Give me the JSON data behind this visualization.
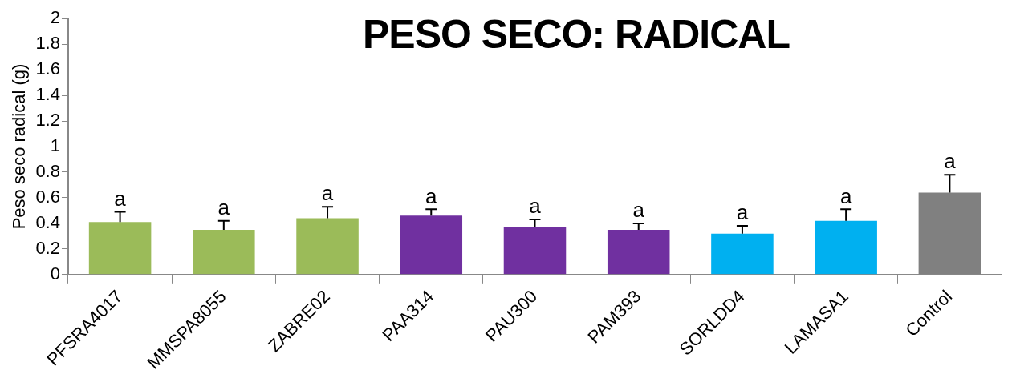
{
  "chart_data": {
    "type": "bar",
    "title": "PESO SECO: RADICAL",
    "ylabel": "Peso seco radical (g)",
    "categories": [
      "PFSRA4017",
      "MMSPA8055",
      "ZABRE02",
      "PAA314",
      "PAU300",
      "PAM393",
      "SORLDD4",
      "LAMASA1",
      "Control"
    ],
    "values": [
      0.41,
      0.35,
      0.44,
      0.46,
      0.37,
      0.35,
      0.32,
      0.42,
      0.64
    ],
    "colors": [
      "#9bbb59",
      "#9bbb59",
      "#9bbb59",
      "#7030a0",
      "#7030a0",
      "#7030a0",
      "#00b0f0",
      "#00b0f0",
      "#808080"
    ],
    "errors": [
      [
        0.41,
        0.49
      ],
      [
        0.35,
        0.42
      ],
      [
        0.44,
        0.53
      ],
      [
        0.46,
        0.51
      ],
      [
        0.37,
        0.43
      ],
      [
        0.35,
        0.4
      ],
      [
        0.32,
        0.38
      ],
      [
        0.42,
        0.51
      ],
      [
        0.64,
        0.78
      ]
    ],
    "value_labels": [
      "a",
      "a",
      "a",
      "a",
      "a",
      "a",
      "a",
      "a",
      "a"
    ],
    "ylim": [
      0,
      2
    ],
    "yticks": [
      0,
      0.2,
      0.4,
      0.6,
      0.8,
      1,
      1.2,
      1.4,
      1.6,
      1.8,
      2
    ],
    "grid": false,
    "legend": false
  }
}
